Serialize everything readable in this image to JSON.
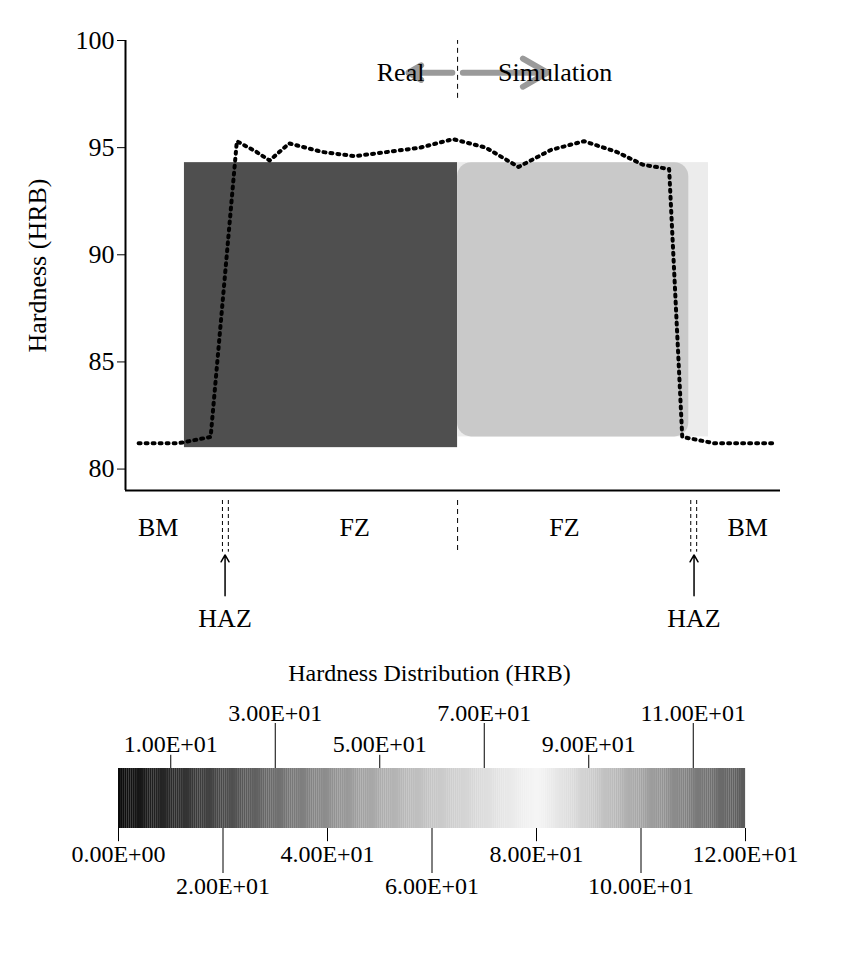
{
  "chart_data": [
    {
      "type": "line",
      "y_label": "Hardness (HRB)",
      "x": [
        2,
        8,
        13,
        17,
        20,
        22,
        25,
        30,
        35,
        40,
        45,
        50,
        55,
        60,
        65,
        70,
        75,
        79,
        83,
        85,
        90,
        99
      ],
      "values": [
        81.2,
        81.2,
        81.5,
        95.3,
        94.8,
        94.4,
        95.2,
        94.8,
        94.6,
        94.8,
        95.0,
        95.4,
        95.0,
        94.1,
        94.9,
        95.3,
        94.8,
        94.2,
        94.0,
        81.5,
        81.2,
        81.2
      ],
      "color": "#000000",
      "line_style": "dotted",
      "xlim": [
        0,
        100
      ],
      "ylim": [
        79,
        100
      ],
      "yticks": [
        80,
        85,
        90,
        95,
        100
      ],
      "tick_labels": "y",
      "annotations": [
        {
          "text": "Real",
          "x": 42,
          "y": 98.5
        },
        {
          "text": "Simulation",
          "x": 65.6,
          "y": 98.5
        }
      ],
      "divider": 50.7,
      "regions": [
        {
          "label": "BM",
          "x": 5
        },
        {
          "label": "FZ",
          "x": 35
        },
        {
          "label": "FZ",
          "x": 67
        },
        {
          "label": "BM",
          "x": 95
        }
      ],
      "haz": [
        {
          "label": "HAZ",
          "x": 15.2
        },
        {
          "label": "HAZ",
          "x": 86.8
        }
      ],
      "boundaries": [
        14.8,
        15.7,
        86.3,
        87.2
      ]
    },
    {
      "type": "colorbar",
      "title": "Hardness Distribution (HRB)",
      "clim": [
        0,
        120
      ],
      "cticks": [
        {
          "value": 0,
          "label": "0.00E+00"
        },
        {
          "value": 10,
          "label": "1.00E+01"
        },
        {
          "value": 20,
          "label": "2.00E+01"
        },
        {
          "value": 30,
          "label": "3.00E+01"
        },
        {
          "value": 40,
          "label": "4.00E+01"
        },
        {
          "value": 50,
          "label": "5.00E+01"
        },
        {
          "value": 60,
          "label": "6.00E+01"
        },
        {
          "value": 70,
          "label": "7.00E+01"
        },
        {
          "value": 80,
          "label": "8.00E+01"
        },
        {
          "value": 90,
          "label": "9.00E+01"
        },
        {
          "value": 100,
          "label": "10.00E+01"
        },
        {
          "value": 110,
          "label": "11.00E+01"
        },
        {
          "value": 120,
          "label": "12.00E+01"
        }
      ],
      "colors": [
        "#0a0a0a",
        "#2a2a2a",
        "#4a4a4a",
        "#6e6e6e",
        "#8e8e8e",
        "#acacac",
        "#c6c6c6",
        "#dcdcdc",
        "#f6f6f6",
        "#cfcfcf",
        "#a5a5a5",
        "#7d7d7d",
        "#5a5a5a"
      ]
    }
  ]
}
